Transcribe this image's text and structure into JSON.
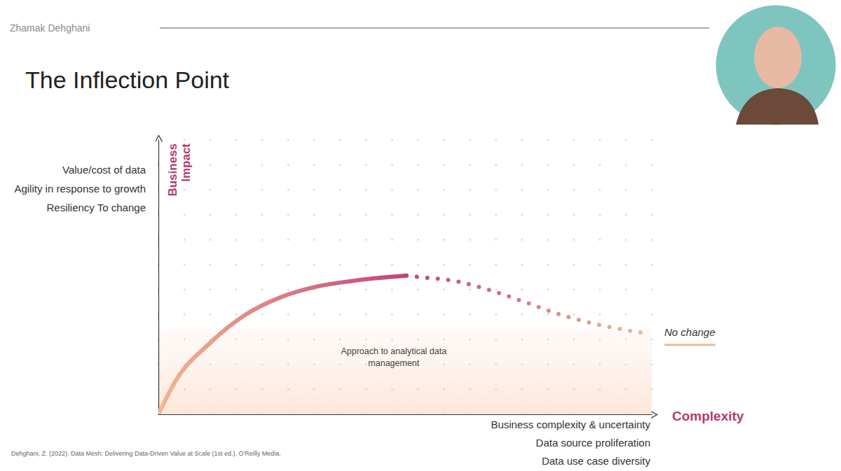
{
  "author": "Zhamak Dehghani",
  "citation": "Dehghani, Z. (2022). Data Mesh: Delivering Data-Driven Value at Scale (1st ed.). O'Reilly Media.",
  "chart_data": {
    "type": "line",
    "title": "The Inflection Point",
    "xlabel": "Complexity",
    "ylabel": "Business Impact",
    "xlabel_items": [
      "Business complexity & uncertainty",
      "Data source proliferation",
      "Data use case diversity"
    ],
    "ylabel_items": [
      "Value/cost of data",
      "Agility in response to growth",
      "Resiliency To change"
    ],
    "x": [
      0,
      0.65,
      2.0,
      3.35,
      4.7,
      6.05,
      7.4,
      9.55,
      10.1,
      11.44,
      12.8,
      14.14,
      15.5,
      16.84,
      18.68
    ],
    "xlim": [
      0,
      19
    ],
    "ylim": [
      0,
      11
    ],
    "xticks": [
      0,
      1,
      2,
      3,
      4,
      5,
      6,
      7,
      8,
      9,
      10,
      11,
      12,
      13,
      14,
      15,
      16,
      17,
      18,
      19
    ],
    "yticks": [
      0,
      1,
      2,
      3,
      4,
      5,
      6,
      7,
      8,
      9,
      10,
      11
    ],
    "grid": true,
    "tick_labels": false,
    "legend": "right",
    "series": [
      {
        "name": "Approach to analytical data management",
        "color": "#c2437a",
        "line_style": "solid",
        "values": [
          0,
          1.32,
          2.87,
          3.99,
          4.69,
          5.11,
          5.34,
          5.56,
          null,
          null,
          null,
          null,
          null,
          null,
          null
        ]
      },
      {
        "name": "No change",
        "color": "#e6bd98",
        "line_style": "dotted",
        "values": [
          null,
          null,
          null,
          null,
          null,
          null,
          null,
          5.56,
          5.5,
          5.34,
          4.97,
          4.49,
          3.99,
          3.62,
          3.26
        ]
      }
    ]
  }
}
